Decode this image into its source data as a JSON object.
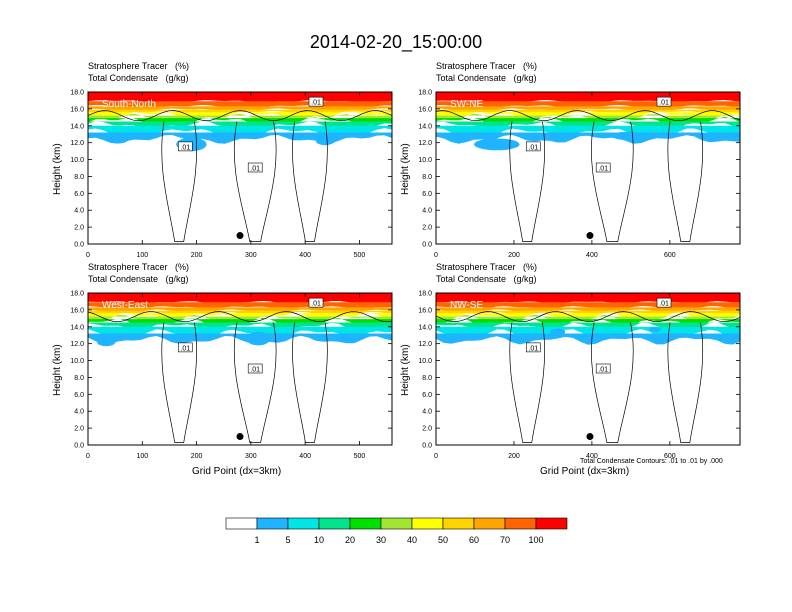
{
  "title": "2014-02-20_15:00:00",
  "panels": [
    {
      "name": "South-North",
      "line1": "Stratosphere Tracer   (%)",
      "line2": "Total Condensate   (g/kg)",
      "ylabel": "Height (km)",
      "xticks": [
        "0",
        "100",
        "200",
        "300",
        "400",
        "500"
      ],
      "xmax": 560,
      "xtickvals": [
        0,
        100,
        200,
        300,
        400,
        500
      ],
      "contour_label": ".01",
      "marker_x": 280
    },
    {
      "name": "SW-NE",
      "line1": "Stratosphere Tracer   (%)",
      "line2": "Total Condensate   (g/kg)",
      "ylabel": "Height (km)",
      "xticks": [
        "0",
        "200",
        "400",
        "600"
      ],
      "xmax": 780,
      "xtickvals": [
        0,
        200,
        400,
        600
      ],
      "contour_label": ".01",
      "marker_x": 395
    },
    {
      "name": "West-East",
      "line1": "Stratosphere Tracer   (%)",
      "line2": "Total Condensate   (g/kg)",
      "ylabel": "Height (km)",
      "xticks": [
        "0",
        "100",
        "200",
        "300",
        "400",
        "500"
      ],
      "xmax": 560,
      "xtickvals": [
        0,
        100,
        200,
        300,
        400,
        500
      ],
      "contour_label": ".01",
      "marker_x": 280,
      "xlabel": "Grid Point (dx=3km)"
    },
    {
      "name": "NW-SE",
      "line1": "Stratosphere Tracer   (%)",
      "line2": "Total Condensate   (g/kg)",
      "ylabel": "Height (km)",
      "xticks": [
        "0",
        "200",
        "400",
        "600"
      ],
      "xmax": 780,
      "xtickvals": [
        0,
        200,
        400,
        600
      ],
      "contour_label": ".01",
      "marker_x": 395,
      "xlabel": "Grid Point (dx=3km)",
      "note": "Total Condensate Contours: .01 to .01 by .000"
    }
  ],
  "yticks": [
    "0.0",
    "2.0",
    "4.0",
    "6.0",
    "8.0",
    "10.0",
    "12.0",
    "14.0",
    "16.0",
    "18.0"
  ],
  "colorbar": {
    "labels": [
      "1",
      "5",
      "10",
      "20",
      "30",
      "40",
      "50",
      "60",
      "70",
      "100"
    ],
    "colors": [
      "#ffffff",
      "#1e90ff",
      "#1eb4ff",
      "#00e5e5",
      "#00e58c",
      "#00e000",
      "#a0e632",
      "#ffff00",
      "#ffd200",
      "#ffa500",
      "#ff6400",
      "#ff0000"
    ]
  },
  "chart_data": {
    "type": "heatmap",
    "title": "2014-02-20_15:00:00",
    "series": [
      {
        "name": "Stratosphere Tracer",
        "units": "%"
      },
      {
        "name": "Total Condensate",
        "units": "g/kg"
      }
    ],
    "ylabel": "Height (km)",
    "ylim": [
      0,
      18
    ],
    "xlabel": "Grid Point (dx=3km)",
    "levels": [
      1,
      5,
      10,
      20,
      30,
      40,
      50,
      60,
      70,
      100
    ],
    "panels": [
      {
        "name": "South-North",
        "xlim": [
          0,
          560
        ]
      },
      {
        "name": "SW-NE",
        "xlim": [
          0,
          780
        ]
      },
      {
        "name": "West-East",
        "xlim": [
          0,
          560
        ]
      },
      {
        "name": "NW-SE",
        "xlim": [
          0,
          780
        ]
      }
    ]
  }
}
